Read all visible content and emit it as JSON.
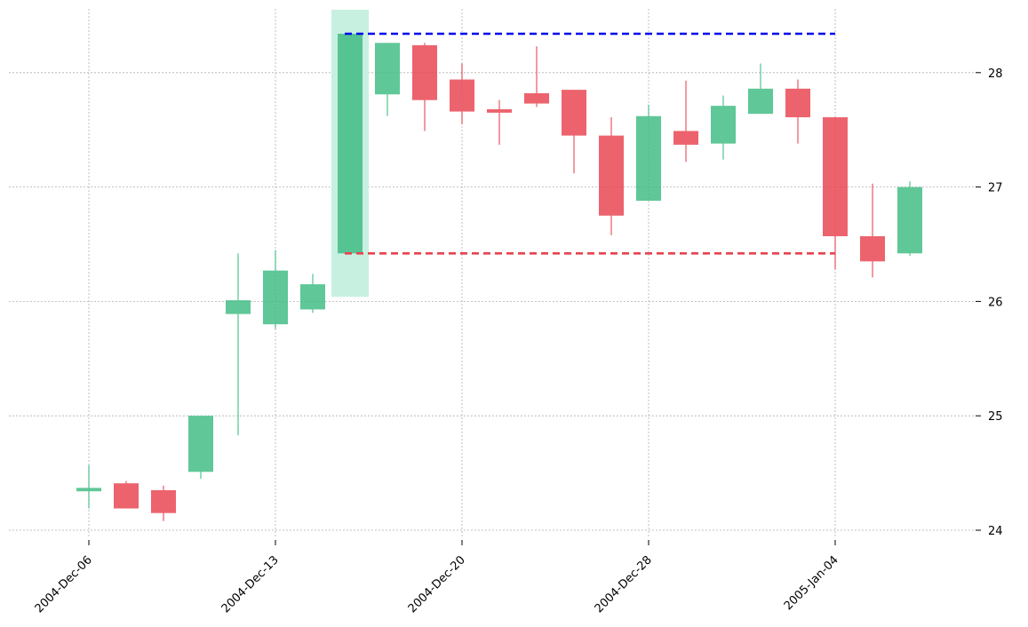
{
  "chart_data": {
    "type": "candlestick",
    "title": "",
    "xlabel": "",
    "ylabel": "",
    "ylim": [
      23.9,
      28.55
    ],
    "y_ticks": [
      24,
      25,
      26,
      27,
      28
    ],
    "y_axis_side": "right",
    "grid": true,
    "x_ticks": [
      {
        "index": 0,
        "label": "2004-Dec-06"
      },
      {
        "index": 5,
        "label": "2004-Dec-13"
      },
      {
        "index": 10,
        "label": "2004-Dec-20"
      },
      {
        "index": 15,
        "label": "2004-Dec-28"
      },
      {
        "index": 20,
        "label": "2005-Jan-04"
      }
    ],
    "candles": [
      {
        "open": 24.34,
        "high": 24.57,
        "low": 24.19,
        "close": 24.37
      },
      {
        "open": 24.41,
        "high": 24.43,
        "low": 24.19,
        "close": 24.19
      },
      {
        "open": 24.35,
        "high": 24.39,
        "low": 24.08,
        "close": 24.15
      },
      {
        "open": 24.51,
        "high": 25.0,
        "low": 24.45,
        "close": 25.0
      },
      {
        "open": 25.89,
        "high": 26.42,
        "low": 24.83,
        "close": 26.01
      },
      {
        "open": 25.8,
        "high": 26.45,
        "low": 25.76,
        "close": 26.27
      },
      {
        "open": 25.93,
        "high": 26.24,
        "low": 25.9,
        "close": 26.15
      },
      {
        "open": 26.42,
        "high": 28.34,
        "low": 26.42,
        "close": 28.34
      },
      {
        "open": 27.81,
        "high": 28.26,
        "low": 27.62,
        "close": 28.26
      },
      {
        "open": 28.24,
        "high": 28.26,
        "low": 27.49,
        "close": 27.76
      },
      {
        "open": 27.94,
        "high": 28.08,
        "low": 27.55,
        "close": 27.66
      },
      {
        "open": 27.68,
        "high": 27.76,
        "low": 27.37,
        "close": 27.65
      },
      {
        "open": 27.82,
        "high": 28.23,
        "low": 27.7,
        "close": 27.73
      },
      {
        "open": 27.85,
        "high": 27.85,
        "low": 27.12,
        "close": 27.45
      },
      {
        "open": 27.45,
        "high": 27.61,
        "low": 26.58,
        "close": 26.75
      },
      {
        "open": 26.88,
        "high": 27.72,
        "low": 26.88,
        "close": 27.62
      },
      {
        "open": 27.49,
        "high": 27.93,
        "low": 27.22,
        "close": 27.37
      },
      {
        "open": 27.38,
        "high": 27.8,
        "low": 27.24,
        "close": 27.71
      },
      {
        "open": 27.64,
        "high": 28.08,
        "low": 27.64,
        "close": 27.86
      },
      {
        "open": 27.86,
        "high": 27.94,
        "low": 27.38,
        "close": 27.61
      },
      {
        "open": 27.61,
        "high": 27.61,
        "low": 26.28,
        "close": 26.57
      },
      {
        "open": 26.57,
        "high": 27.03,
        "low": 26.21,
        "close": 26.35
      },
      {
        "open": 26.42,
        "high": 27.05,
        "low": 26.4,
        "close": 27.0
      }
    ],
    "highlight": {
      "candle_index": 7,
      "low": 26.04,
      "high": 28.55,
      "color": "#c8f0e0"
    },
    "reference_lines": [
      {
        "y": 28.34,
        "from_index": 7,
        "to_index": 20,
        "color": "#0000ee",
        "style": "dashed"
      },
      {
        "y": 26.42,
        "from_index": 7,
        "to_index": 20,
        "color": "#e8424f",
        "style": "dashed"
      }
    ],
    "colors": {
      "up": "#3dbb82",
      "down": "#e8424f",
      "grid": "#b0b0b0"
    }
  }
}
